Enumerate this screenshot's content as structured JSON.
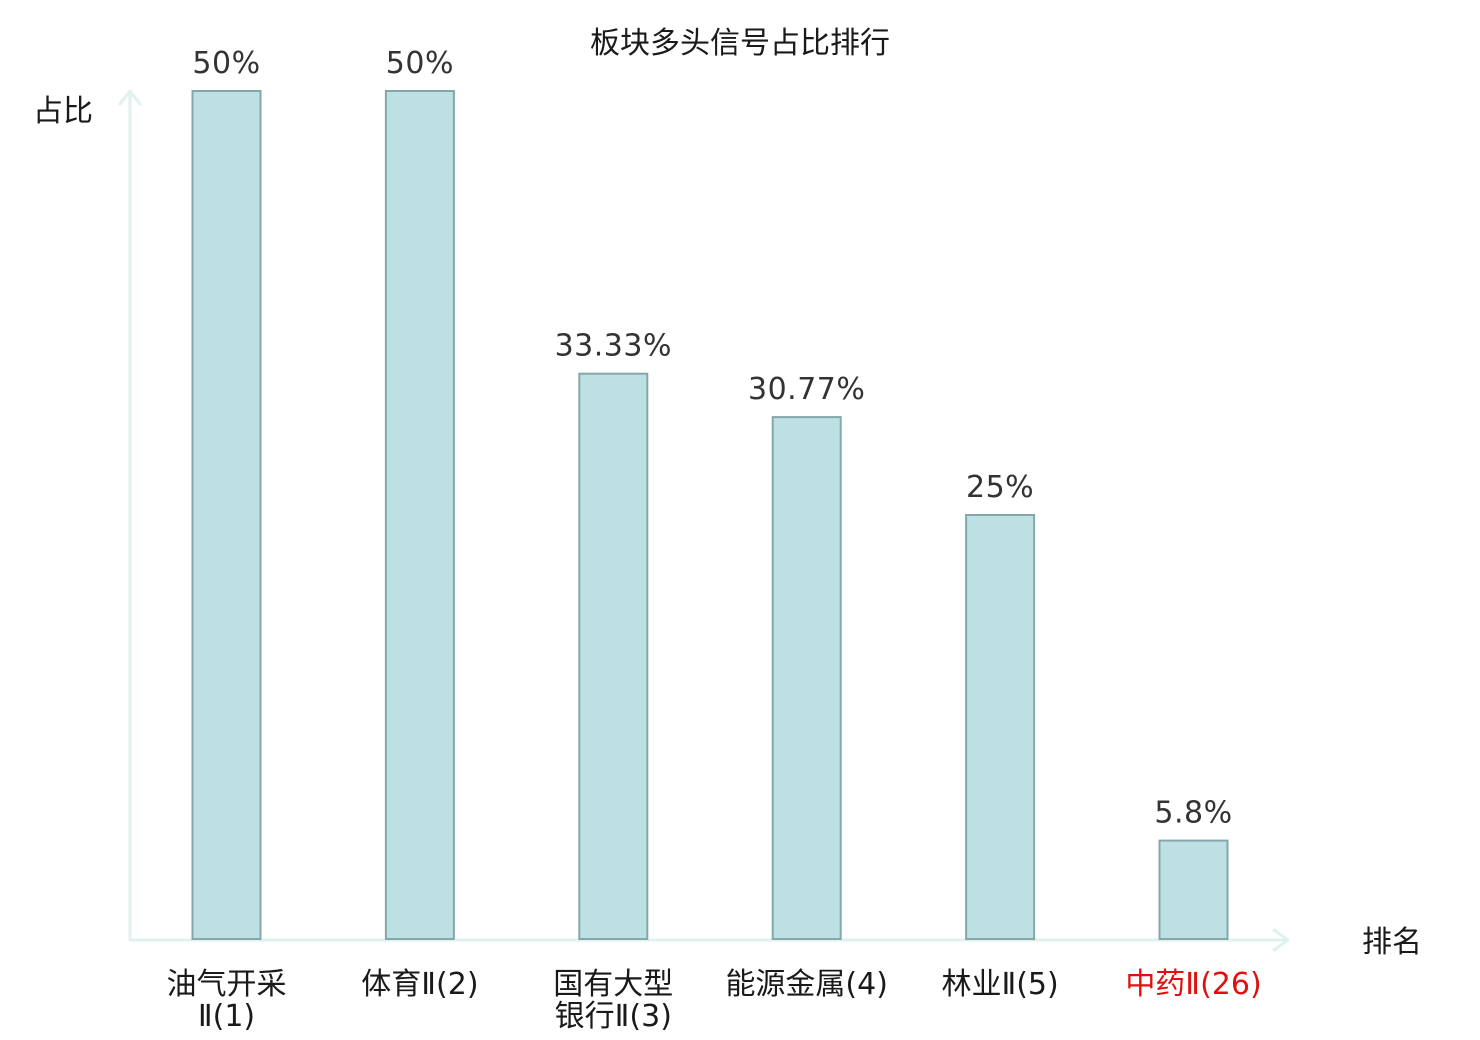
{
  "chart_data": {
    "type": "bar",
    "title": "板块多头信号占比排行",
    "ylabel": "占比",
    "xlabel": "排名",
    "ylim": [
      0,
      50
    ],
    "grid": false,
    "categories": [
      [
        "油气开采",
        "Ⅱ(1)"
      ],
      [
        "体育Ⅱ(2)"
      ],
      [
        "国有大型",
        "银行Ⅱ(3)"
      ],
      [
        "能源金属(4)"
      ],
      [
        "林业Ⅱ(5)"
      ],
      [
        "中药Ⅱ(26)"
      ]
    ],
    "values": [
      50,
      50,
      33.33,
      30.77,
      25,
      5.8
    ],
    "value_labels": [
      "50%",
      "50%",
      "33.33%",
      "30.77%",
      "25%",
      "5.8%"
    ],
    "highlight_index": 5
  },
  "colors": {
    "bar_fill": "#bde0e3",
    "bar_stroke": "#86a7aa",
    "axis": "#dff2ef",
    "text": "#1a1a1a",
    "value_text": "#333333",
    "highlight_text": "#e01010"
  }
}
